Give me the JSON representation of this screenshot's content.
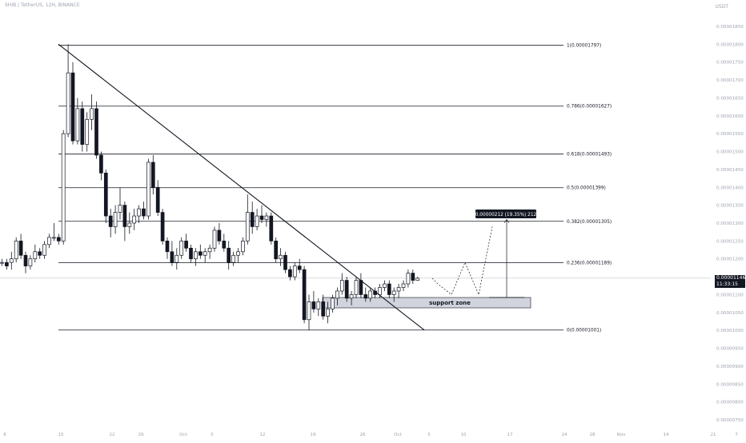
{
  "header": {
    "symbol": "SHIB / TetherUS, 12H, BINANCE",
    "currency": "USDT"
  },
  "last_price": {
    "value": "0.00001146",
    "countdown": "11:33:15"
  },
  "chart_data": {
    "type": "candlestick",
    "y_scale": "linear",
    "ylim": [
      7.3e-06,
      1.89e-05
    ],
    "x_labels": [
      "8",
      "15",
      "22",
      "29",
      "Oct",
      "5",
      "12",
      "19",
      "26",
      "Oct",
      "5",
      "10",
      "17",
      "24",
      "28",
      "Nov",
      "14",
      "21",
      "7"
    ],
    "y_ticks": [
      "0.00001850",
      "0.00001800",
      "0.00001750",
      "0.00001700",
      "0.00001650",
      "0.00001600",
      "0.00001550",
      "0.00001500",
      "0.00001450",
      "0.00001400",
      "0.00001350",
      "0.00001300",
      "0.00001250",
      "0.00001200",
      "0.00001150",
      "0.00001100",
      "0.00001050",
      "0.00001000",
      "0.00000950",
      "0.00000900",
      "0.00000850",
      "0.00000800",
      "0.00000750"
    ],
    "fib_levels": [
      {
        "ratio": 1,
        "price": 1.797e-05,
        "label": "1(0.00001797)"
      },
      {
        "ratio": 0.786,
        "price": 1.627e-05,
        "label": "0.786(0.00001627)"
      },
      {
        "ratio": 0.618,
        "price": 1.493e-05,
        "label": "0.618(0.00001493)"
      },
      {
        "ratio": 0.5,
        "price": 1.399e-05,
        "label": "0.5(0.00001399)"
      },
      {
        "ratio": 0.382,
        "price": 1.305e-05,
        "label": "0.382(0.00001305)"
      },
      {
        "ratio": 0.236,
        "price": 1.189e-05,
        "label": "0.236(0.00001189)"
      },
      {
        "ratio": 0,
        "price": 1.001e-05,
        "label": "0(0.00001001)"
      }
    ],
    "trendline": {
      "start_price": 1.8e-05,
      "end_price": 1.001e-05
    },
    "support_zone": {
      "label": "support zone",
      "low": 1.063e-05,
      "high": 1.092e-05
    },
    "measure_label": "0.00000212 (19.35%) 212",
    "projection_prices": [
      1.146e-05,
      1.13e-05,
      1.1e-05,
      1.19e-05,
      1.1e-05,
      1.29e-05
    ],
    "candles": [
      [
        1.19e-05,
        1.2e-05,
        1.18e-05,
        1.19e-05
      ],
      [
        1.19e-05,
        1.2e-05,
        1.17e-05,
        1.18e-05
      ],
      [
        1.19e-05,
        1.22e-05,
        1.17e-05,
        1.2e-05
      ],
      [
        1.2e-05,
        1.26e-05,
        1.19e-05,
        1.25e-05
      ],
      [
        1.25e-05,
        1.27e-05,
        1.2e-05,
        1.21e-05
      ],
      [
        1.21e-05,
        1.22e-05,
        1.16e-05,
        1.18e-05
      ],
      [
        1.18e-05,
        1.21e-05,
        1.17e-05,
        1.2e-05
      ],
      [
        1.2e-05,
        1.24e-05,
        1.19e-05,
        1.22e-05
      ],
      [
        1.22e-05,
        1.23e-05,
        1.2e-05,
        1.21e-05
      ],
      [
        1.21e-05,
        1.25e-05,
        1.2e-05,
        1.24e-05
      ],
      [
        1.24e-05,
        1.27e-05,
        1.23e-05,
        1.26e-05
      ],
      [
        1.26e-05,
        1.3e-05,
        1.25e-05,
        1.26e-05
      ],
      [
        1.26e-05,
        1.27e-05,
        1.24e-05,
        1.25e-05
      ],
      [
        1.25e-05,
        1.56e-05,
        1.24e-05,
        1.55e-05
      ],
      [
        1.55e-05,
        1.8e-05,
        1.54e-05,
        1.72e-05
      ],
      [
        1.72e-05,
        1.75e-05,
        1.52e-05,
        1.53e-05
      ],
      [
        1.53e-05,
        1.65e-05,
        1.52e-05,
        1.62e-05
      ],
      [
        1.62e-05,
        1.64e-05,
        1.5e-05,
        1.52e-05
      ],
      [
        1.52e-05,
        1.61e-05,
        1.5e-05,
        1.59e-05
      ],
      [
        1.59e-05,
        1.66e-05,
        1.56e-05,
        1.62e-05
      ],
      [
        1.62e-05,
        1.64e-05,
        1.48e-05,
        1.49e-05
      ],
      [
        1.49e-05,
        1.5e-05,
        1.42e-05,
        1.44e-05
      ],
      [
        1.44e-05,
        1.45e-05,
        1.3e-05,
        1.32e-05
      ],
      [
        1.32e-05,
        1.34e-05,
        1.26e-05,
        1.29e-05
      ],
      [
        1.29e-05,
        1.35e-05,
        1.27e-05,
        1.33e-05
      ],
      [
        1.33e-05,
        1.4e-05,
        1.31e-05,
        1.35e-05
      ],
      [
        1.35e-05,
        1.36e-05,
        1.25e-05,
        1.29e-05
      ],
      [
        1.29e-05,
        1.33e-05,
        1.27e-05,
        1.3e-05
      ],
      [
        1.3e-05,
        1.34e-05,
        1.28e-05,
        1.32e-05
      ],
      [
        1.32e-05,
        1.35e-05,
        1.3e-05,
        1.34e-05
      ],
      [
        1.34e-05,
        1.36e-05,
        1.31e-05,
        1.32e-05
      ],
      [
        1.32e-05,
        1.48e-05,
        1.31e-05,
        1.47e-05
      ],
      [
        1.47e-05,
        1.49e-05,
        1.38e-05,
        1.4e-05
      ],
      [
        1.4e-05,
        1.42e-05,
        1.32e-05,
        1.33e-05
      ],
      [
        1.33e-05,
        1.34e-05,
        1.24e-05,
        1.25e-05
      ],
      [
        1.25e-05,
        1.26e-05,
        1.2e-05,
        1.22e-05
      ],
      [
        1.22e-05,
        1.25e-05,
        1.18e-05,
        1.19e-05
      ],
      [
        1.19e-05,
        1.23e-05,
        1.17e-05,
        1.21e-05
      ],
      [
        1.21e-05,
        1.26e-05,
        1.2e-05,
        1.25e-05
      ],
      [
        1.25e-05,
        1.27e-05,
        1.22e-05,
        1.23e-05
      ],
      [
        1.23e-05,
        1.24e-05,
        1.19e-05,
        1.2e-05
      ],
      [
        1.2e-05,
        1.23e-05,
        1.18e-05,
        1.22e-05
      ],
      [
        1.22e-05,
        1.24e-05,
        1.2e-05,
        1.21e-05
      ],
      [
        1.21e-05,
        1.23e-05,
        1.19e-05,
        1.22e-05
      ],
      [
        1.22e-05,
        1.24e-05,
        1.2e-05,
        1.23e-05
      ],
      [
        1.23e-05,
        1.29e-05,
        1.22e-05,
        1.28e-05
      ],
      [
        1.28e-05,
        1.3e-05,
        1.24e-05,
        1.25e-05
      ],
      [
        1.25e-05,
        1.27e-05,
        1.22e-05,
        1.23e-05
      ],
      [
        1.23e-05,
        1.25e-05,
        1.17e-05,
        1.19e-05
      ],
      [
        1.19e-05,
        1.22e-05,
        1.18e-05,
        1.21e-05
      ],
      [
        1.21e-05,
        1.23e-05,
        1.19e-05,
        1.22e-05
      ],
      [
        1.22e-05,
        1.26e-05,
        1.21e-05,
        1.25e-05
      ],
      [
        1.25e-05,
        1.38e-05,
        1.24e-05,
        1.33e-05
      ],
      [
        1.33e-05,
        1.36e-05,
        1.27e-05,
        1.29e-05
      ],
      [
        1.29e-05,
        1.34e-05,
        1.28e-05,
        1.32e-05
      ],
      [
        1.32e-05,
        1.35e-05,
        1.3e-05,
        1.31e-05
      ],
      [
        1.31e-05,
        1.33e-05,
        1.29e-05,
        1.32e-05
      ],
      [
        1.32e-05,
        1.33e-05,
        1.24e-05,
        1.25e-05
      ],
      [
        1.25e-05,
        1.26e-05,
        1.19e-05,
        1.2e-05
      ],
      [
        1.2e-05,
        1.23e-05,
        1.18e-05,
        1.21e-05
      ],
      [
        1.21e-05,
        1.22e-05,
        1.16e-05,
        1.17e-05
      ],
      [
        1.17e-05,
        1.18e-05,
        1.14e-05,
        1.15e-05
      ],
      [
        1.15e-05,
        1.19e-05,
        1.14e-05,
        1.18e-05
      ],
      [
        1.18e-05,
        1.2e-05,
        1.16e-05,
        1.17e-05
      ],
      [
        1.17e-05,
        1.18e-05,
        1.02e-05,
        1.03e-05
      ],
      [
        1.03e-05,
        1.1e-05,
        1e-05,
        1.08e-05
      ],
      [
        1.08e-05,
        1.11e-05,
        1.05e-05,
        1.06e-05
      ],
      [
        1.06e-05,
        1.09e-05,
        1.04e-05,
        1.08e-05
      ],
      [
        1.08e-05,
        1.1e-05,
        1.03e-05,
        1.04e-05
      ],
      [
        1.04e-05,
        1.08e-05,
        1.02e-05,
        1.06e-05
      ],
      [
        1.06e-05,
        1.1e-05,
        1.05e-05,
        1.09e-05
      ],
      [
        1.09e-05,
        1.12e-05,
        1.07e-05,
        1.11e-05
      ],
      [
        1.11e-05,
        1.16e-05,
        1.1e-05,
        1.14e-05
      ],
      [
        1.14e-05,
        1.15e-05,
        1.08e-05,
        1.09e-05
      ],
      [
        1.09e-05,
        1.11e-05,
        1.07e-05,
        1.1e-05
      ],
      [
        1.1e-05,
        1.15e-05,
        1.09e-05,
        1.14e-05
      ],
      [
        1.14e-05,
        1.16e-05,
        1.09e-05,
        1.1e-05
      ],
      [
        1.1e-05,
        1.12e-05,
        1.08e-05,
        1.09e-05
      ],
      [
        1.09e-05,
        1.12e-05,
        1.08e-05,
        1.11e-05
      ],
      [
        1.11e-05,
        1.12e-05,
        1.09e-05,
        1.1e-05
      ],
      [
        1.1e-05,
        1.13e-05,
        1.09e-05,
        1.12e-05
      ],
      [
        1.12e-05,
        1.14e-05,
        1.11e-05,
        1.13e-05
      ],
      [
        1.13e-05,
        1.14e-05,
        1.09e-05,
        1.1e-05
      ],
      [
        1.1e-05,
        1.12e-05,
        1.08e-05,
        1.11e-05
      ],
      [
        1.11e-05,
        1.13e-05,
        1.09e-05,
        1.12e-05
      ],
      [
        1.12e-05,
        1.14e-05,
        1.11e-05,
        1.13e-05
      ],
      [
        1.13e-05,
        1.17e-05,
        1.12e-05,
        1.16e-05
      ],
      [
        1.16e-05,
        1.17e-05,
        1.13e-05,
        1.14e-05
      ],
      [
        1.14e-05,
        1.15e-05,
        1.14e-05,
        1.146e-05
      ]
    ]
  }
}
